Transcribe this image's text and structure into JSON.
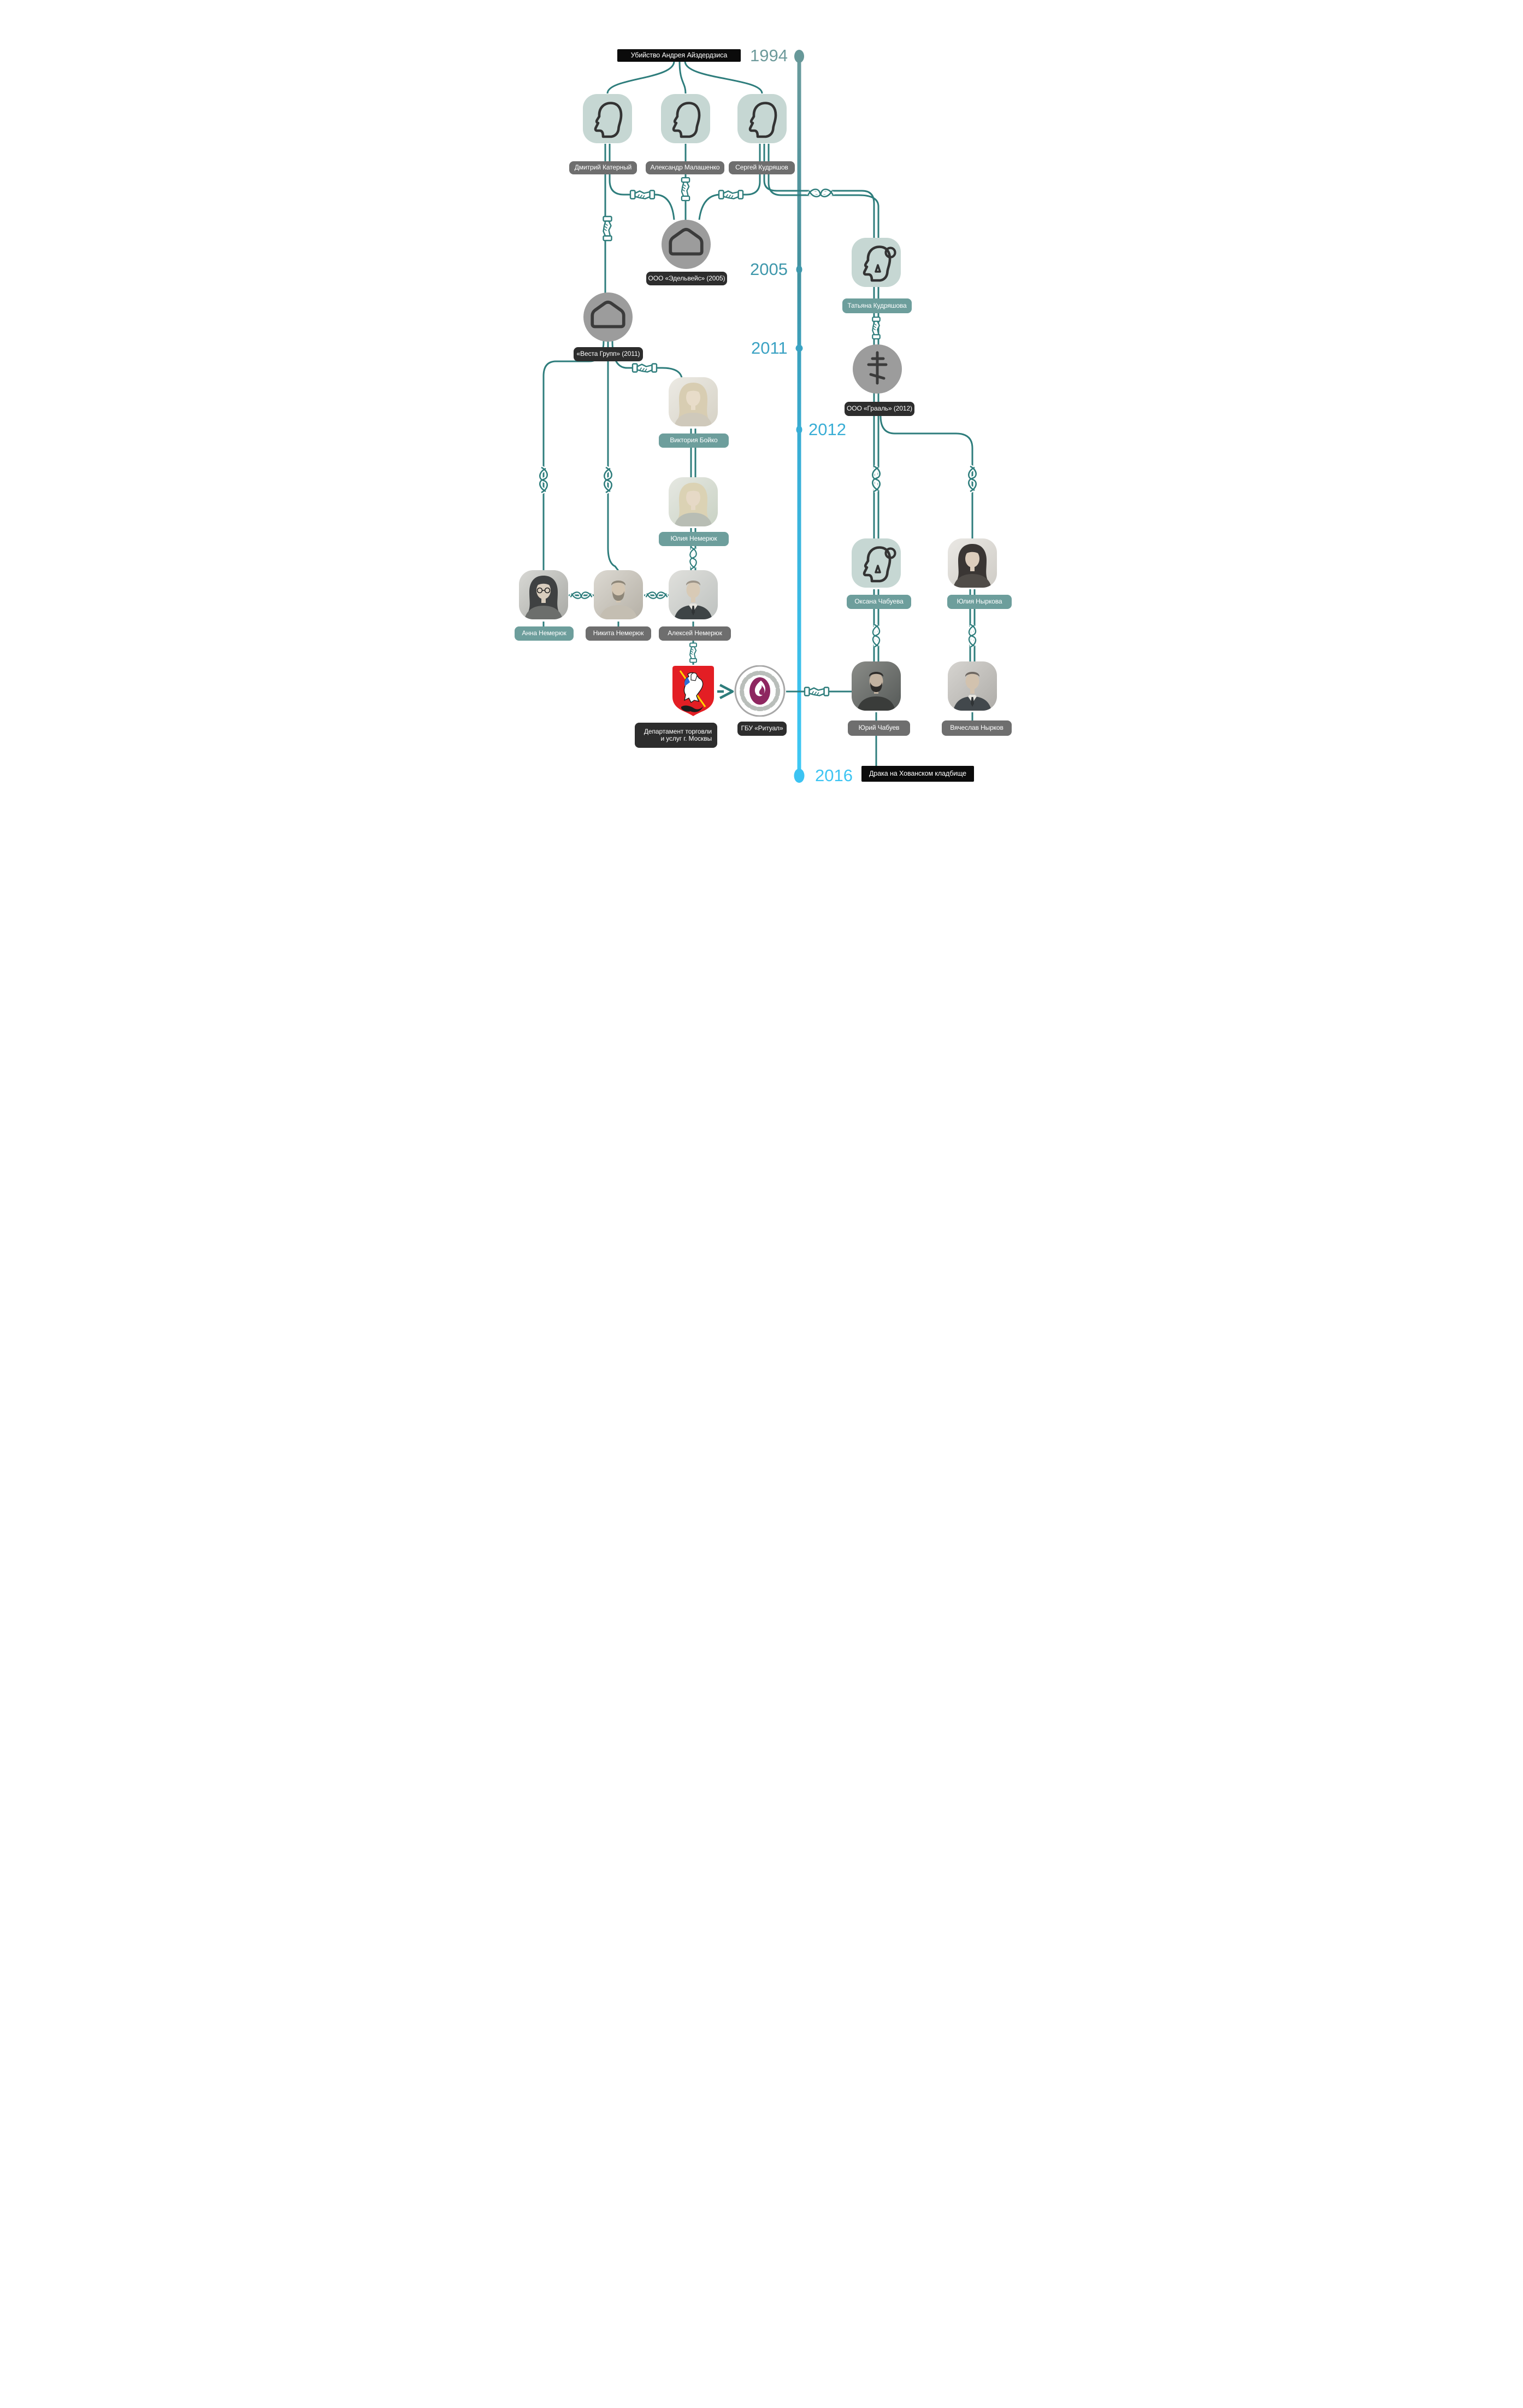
{
  "events": {
    "start": "Убийство Андрея Айздердзиса",
    "end": "Драка на Хованском кладбище"
  },
  "years": {
    "y1994": "1994",
    "y2005": "2005",
    "y2011": "2011",
    "y2012": "2012",
    "y2016": "2016"
  },
  "people": {
    "katerny": "Дмитрий Катерный",
    "malashenko": "Александр Малашенко",
    "kudryashov": "Сергей Кудряшов",
    "tatyana": "Татьяна Кудряшова",
    "boyko": "Виктория Бойко",
    "yulia_nemeryuk": "Юлия Немерюк",
    "anna_nemeryuk": "Анна Немерюк",
    "nikita_nemeryuk": "Никита Немерюк",
    "alexey_nemeryuk": "Алексей Немерюк",
    "oksana_chabueva": "Оксана Чабуева",
    "yulia_nyrkova": "Юлия Ныркова",
    "yuri_chabuev": "Юрий Чабуев",
    "vyacheslav_nyrkov": "Вячеслав Нырков"
  },
  "organizations": {
    "edelweis": "ООО «Эдельвейс» (2005)",
    "vesta": "«Веста Групп» (2011)",
    "graal": "ООО «Грааль» (2012)",
    "dept_line1": "Департамент торговли",
    "dept_line2": "и услуг г. Москвы",
    "ritual": "ГБУ «Ритуал»"
  },
  "colors": {
    "wire_teal": "#2e7d7c",
    "timeline_top": "#6a9b9c",
    "timeline_bottom": "#3ec9f5",
    "year_1994": "#6d9a9b",
    "year_2005": "#3e97ab",
    "year_2011": "#3aa2c3",
    "year_2012": "#38add5",
    "year_2016": "#3dc4f2",
    "label_black": "#0b0b0b",
    "label_dark": "#2d2d2d",
    "label_gray": "#6e6e6e",
    "label_teal": "#6d9e9c",
    "avatar_bg": "#c6d7d3",
    "org_circle": "#9c9c9c",
    "ritual_purple": "#8e2760",
    "coat_red": "#e31e24"
  }
}
